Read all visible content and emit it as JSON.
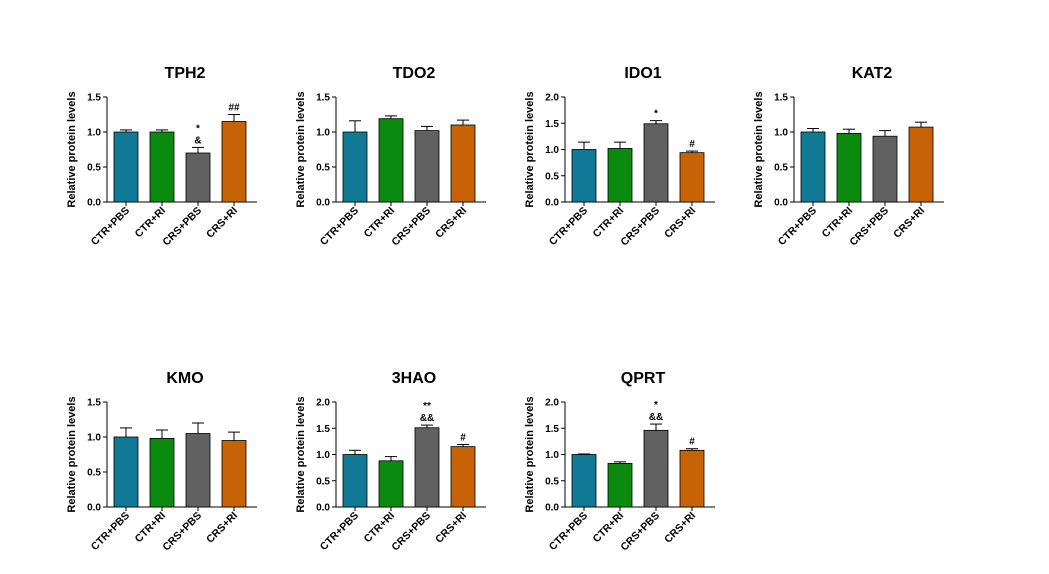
{
  "colors": {
    "CTR+PBS": "#107a96",
    "CTR+RI": "#0a8a0f",
    "CRS+PBS": "#616161",
    "CRS+RI": "#c86207",
    "axis": "#000000"
  },
  "chart_data": [
    {
      "type": "bar",
      "title": "TPH2",
      "ylabel": "Relative protein levels",
      "categories": [
        "CTR+PBS",
        "CTR+RI",
        "CRS+PBS",
        "CRS+RI"
      ],
      "values": [
        1.0,
        1.0,
        0.7,
        1.15
      ],
      "errors": [
        0.03,
        0.03,
        0.08,
        0.1
      ],
      "annotations": [
        "",
        "",
        "*\n&",
        "##"
      ],
      "ylim": [
        0,
        1.5
      ],
      "yticks": [
        "0.0",
        "0.5",
        "1.0",
        "1.5"
      ]
    },
    {
      "type": "bar",
      "title": "TDO2",
      "ylabel": "Relative protein levels",
      "categories": [
        "CTR+PBS",
        "CTR+RI",
        "CRS+PBS",
        "CRS+RI"
      ],
      "values": [
        1.0,
        1.19,
        1.02,
        1.1
      ],
      "errors": [
        0.16,
        0.04,
        0.06,
        0.07
      ],
      "annotations": [
        "",
        "",
        "",
        ""
      ],
      "ylim": [
        0,
        1.5
      ],
      "yticks": [
        "0.0",
        "0.5",
        "1.0",
        "1.5"
      ]
    },
    {
      "type": "bar",
      "title": "IDO1",
      "ylabel": "Relative protein levels",
      "categories": [
        "CTR+PBS",
        "CTR+RI",
        "CRS+PBS",
        "CRS+RI"
      ],
      "values": [
        1.0,
        1.02,
        1.49,
        0.94
      ],
      "errors": [
        0.14,
        0.12,
        0.06,
        0.03
      ],
      "annotations": [
        "",
        "",
        "*",
        "#"
      ],
      "ylim": [
        0,
        2.0
      ],
      "yticks": [
        "0.0",
        "0.5",
        "1.0",
        "1.5",
        "2.0"
      ]
    },
    {
      "type": "bar",
      "title": "KAT2",
      "ylabel": "Relative protein levels",
      "categories": [
        "CTR+PBS",
        "CTR+RI",
        "CRS+PBS",
        "CRS+RI"
      ],
      "values": [
        1.0,
        0.98,
        0.94,
        1.07
      ],
      "errors": [
        0.05,
        0.06,
        0.08,
        0.07
      ],
      "annotations": [
        "",
        "",
        "",
        ""
      ],
      "ylim": [
        0,
        1.5
      ],
      "yticks": [
        "0.0",
        "0.5",
        "1.0",
        "1.5"
      ]
    },
    {
      "type": "bar",
      "title": "KMO",
      "ylabel": "Relative protein levels",
      "categories": [
        "CTR+PBS",
        "CTR+RI",
        "CRS+PBS",
        "CRS+RI"
      ],
      "values": [
        1.0,
        0.98,
        1.05,
        0.95
      ],
      "errors": [
        0.13,
        0.12,
        0.15,
        0.12
      ],
      "annotations": [
        "",
        "",
        "",
        ""
      ],
      "ylim": [
        0,
        1.5
      ],
      "yticks": [
        "0.0",
        "0.5",
        "1.0",
        "1.5"
      ]
    },
    {
      "type": "bar",
      "title": "3HAO",
      "ylabel": "Relative protein levels",
      "categories": [
        "CTR+PBS",
        "CTR+RI",
        "CRS+PBS",
        "CRS+RI"
      ],
      "values": [
        1.0,
        0.88,
        1.51,
        1.15
      ],
      "errors": [
        0.08,
        0.08,
        0.05,
        0.04
      ],
      "annotations": [
        "",
        "",
        "**\n&&",
        "#"
      ],
      "ylim": [
        0,
        2.0
      ],
      "yticks": [
        "0.0",
        "0.5",
        "1.0",
        "1.5",
        "2.0"
      ]
    },
    {
      "type": "bar",
      "title": "QPRT",
      "ylabel": "Relative protein levels",
      "categories": [
        "CTR+PBS",
        "CTR+RI",
        "CRS+PBS",
        "CRS+RI"
      ],
      "values": [
        1.0,
        0.83,
        1.46,
        1.08
      ],
      "errors": [
        0.01,
        0.03,
        0.12,
        0.03
      ],
      "annotations": [
        "",
        "",
        "*\n&&",
        "#"
      ],
      "ylim": [
        0,
        2.0
      ],
      "yticks": [
        "0.0",
        "0.5",
        "1.0",
        "1.5",
        "2.0"
      ]
    }
  ]
}
